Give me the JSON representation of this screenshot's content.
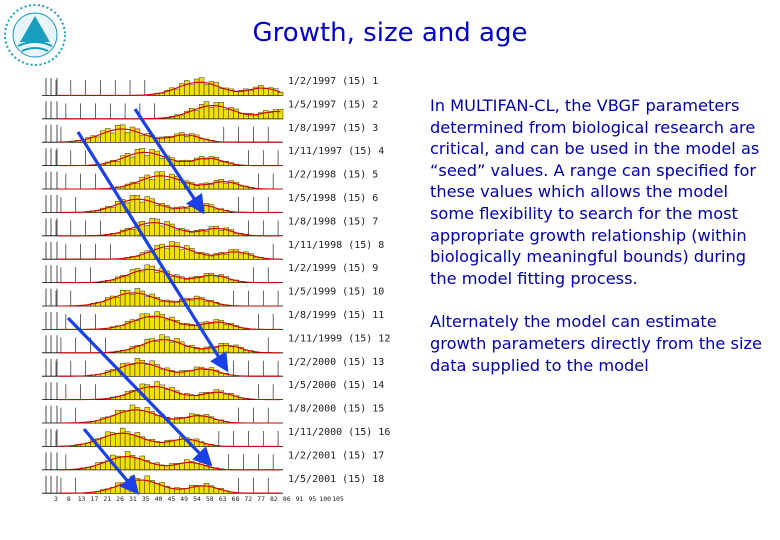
{
  "slide": {
    "title": "Growth, size and age",
    "paragraphs": [
      "In MULTIFAN-CL, the VBGF parameters determined from biological research are critical, and can be used in the model as “seed” values. A range can specified for these values which allows the model some flexibility to search for the most appropriate growth relationship (within biologically meaningful bounds) during the model fitting process.",
      "Alternately the model can estimate growth parameters directly from the size data supplied to the model"
    ]
  },
  "chart_data": {
    "type": "bar",
    "panels": [
      "1/2/1997 (15) 1",
      "1/5/1997 (15) 2",
      "1/8/1997 (15) 3",
      "1/11/1997 (15) 4",
      "1/2/1998 (15) 5",
      "1/5/1998 (15) 6",
      "1/8/1998 (15) 7",
      "1/11/1998 (15) 8",
      "1/2/1999 (15) 9",
      "1/5/1999 (15) 10",
      "1/8/1999 (15) 11",
      "1/11/1999 (15) 12",
      "1/2/2000 (15) 13",
      "1/5/2000 (15) 14",
      "1/8/2000 (15) 15",
      "1/11/2000 (15) 16",
      "1/2/2001 (15) 17",
      "1/5/2001 (15) 18"
    ],
    "x_ticks": [
      "3",
      "8",
      "13",
      "17",
      "21",
      "26",
      "31",
      "35",
      "40",
      "45",
      "49",
      "54",
      "58",
      "63",
      "68",
      "72",
      "77",
      "82",
      "86",
      "91",
      "95",
      "100",
      "105"
    ],
    "colors": {
      "bars": "#f2e000",
      "fit": "#d00000",
      "arrows": "#1a40e8",
      "text": "#0000aa"
    }
  }
}
